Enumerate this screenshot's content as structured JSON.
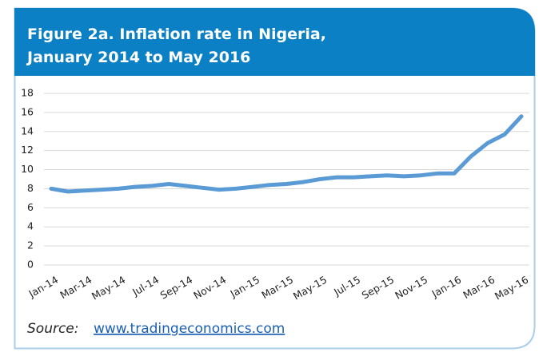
{
  "chart_data": {
    "type": "line",
    "title": [
      "Figure 2a. Inflation rate in Nigeria,",
      "January 2014 to May 2016"
    ],
    "categories": [
      "Jan-14",
      null,
      "Mar-14",
      null,
      "May-14",
      null,
      "Jul-14",
      null,
      "Sep-14",
      null,
      "Nov-14",
      null,
      "Jan-15",
      null,
      "Mar-15",
      null,
      "May-15",
      null,
      "Jul-15",
      null,
      "Sep-15",
      null,
      "Nov-15",
      null,
      "Jan-16",
      null,
      "Mar-16",
      null,
      "May-16"
    ],
    "series": [
      {
        "name": "Inflation rate",
        "color": "#5b9bd5",
        "values": [
          8.0,
          7.7,
          7.8,
          7.9,
          8.0,
          8.2,
          8.3,
          8.5,
          8.3,
          8.1,
          7.9,
          8.0,
          8.2,
          8.4,
          8.5,
          8.7,
          9.0,
          9.2,
          9.2,
          9.3,
          9.4,
          9.3,
          9.4,
          9.6,
          9.6,
          11.4,
          12.8,
          13.7,
          15.6
        ]
      }
    ],
    "ylim": [
      0,
      18
    ],
    "yticks": [
      0,
      2,
      4,
      6,
      8,
      10,
      12,
      14,
      16,
      18
    ],
    "grid": true,
    "source": {
      "label": "Source:",
      "link": "www.tradingeconomics.com"
    }
  }
}
